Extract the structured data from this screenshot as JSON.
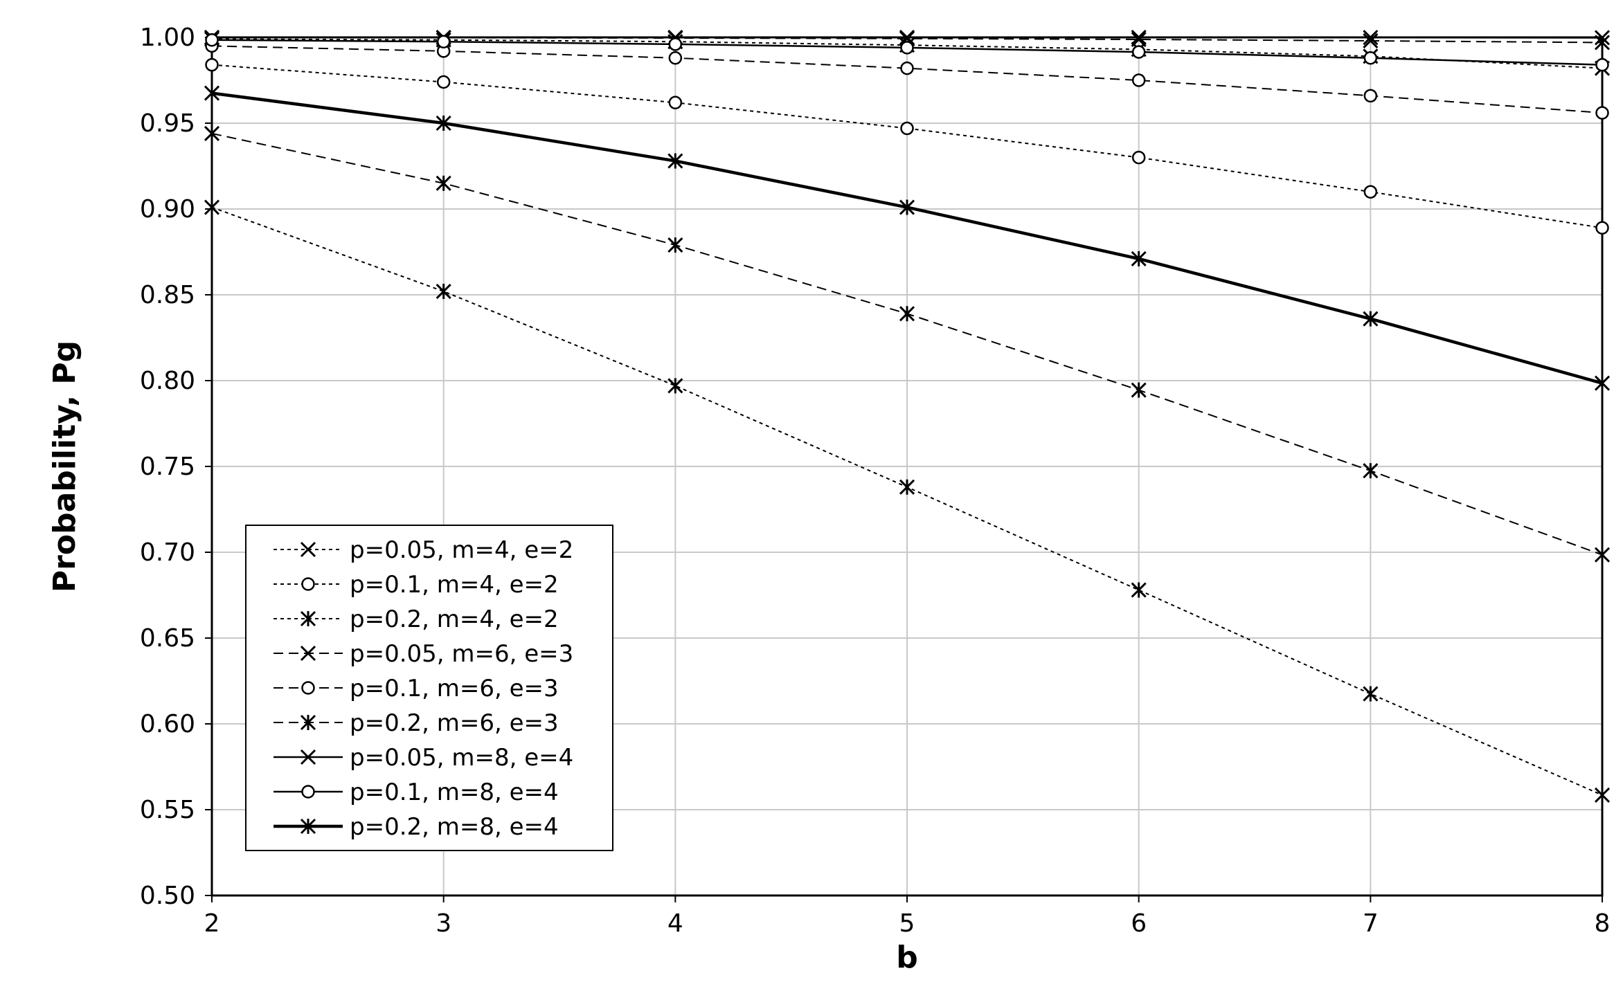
{
  "chart_data": {
    "type": "line",
    "xlabel": "b",
    "ylabel": "Probability, Pg",
    "xlim": [
      2,
      8
    ],
    "ylim": [
      0.5,
      1.0
    ],
    "xticks": [
      "2",
      "3",
      "4",
      "5",
      "6",
      "7",
      "8"
    ],
    "yticks": [
      "0.50",
      "0.55",
      "0.60",
      "0.65",
      "0.70",
      "0.75",
      "0.80",
      "0.85",
      "0.90",
      "0.95",
      "1.00"
    ],
    "grid": true,
    "legend_position": "lower-left",
    "x": [
      2,
      3,
      4,
      5,
      6,
      7,
      8
    ],
    "series": [
      {
        "name": "p=0.05, m=4, e=2",
        "marker": "x",
        "line": "dotted",
        "values": [
          0.999,
          0.9985,
          0.9975,
          0.9955,
          0.993,
          0.989,
          0.982
        ]
      },
      {
        "name": "p=0.1, m=4, e=2",
        "marker": "o",
        "line": "dotted",
        "values": [
          0.984,
          0.974,
          0.962,
          0.947,
          0.93,
          0.91,
          0.889
        ]
      },
      {
        "name": "p=0.2, m=4, e=2",
        "marker": "star",
        "line": "dotted",
        "values": [
          0.901,
          0.852,
          0.797,
          0.738,
          0.678,
          0.6175,
          0.5585
        ]
      },
      {
        "name": "p=0.05, m=6, e=3",
        "marker": "x",
        "line": "dashed",
        "values": [
          0.9999,
          0.9998,
          0.9996,
          0.9993,
          0.9988,
          0.998,
          0.997
        ]
      },
      {
        "name": "p=0.1, m=6, e=3",
        "marker": "o",
        "line": "dashed",
        "values": [
          0.995,
          0.992,
          0.988,
          0.982,
          0.975,
          0.966,
          0.956
        ]
      },
      {
        "name": "p=0.2, m=6, e=3",
        "marker": "star",
        "line": "dashed",
        "values": [
          0.944,
          0.915,
          0.879,
          0.839,
          0.7945,
          0.7475,
          0.6985
        ]
      },
      {
        "name": "p=0.05, m=8, e=4",
        "marker": "x",
        "line": "solid",
        "values": [
          1.0,
          1.0,
          1.0,
          1.0,
          1.0,
          0.9999,
          0.9998
        ]
      },
      {
        "name": "p=0.1, m=8, e=4",
        "marker": "o",
        "line": "solid",
        "values": [
          0.9985,
          0.9975,
          0.996,
          0.994,
          0.9915,
          0.988,
          0.984
        ]
      },
      {
        "name": "p=0.2, m=8, e=4",
        "marker": "star",
        "line": "solid-thick",
        "values": [
          0.9675,
          0.95,
          0.928,
          0.901,
          0.871,
          0.836,
          0.7985
        ]
      }
    ]
  }
}
